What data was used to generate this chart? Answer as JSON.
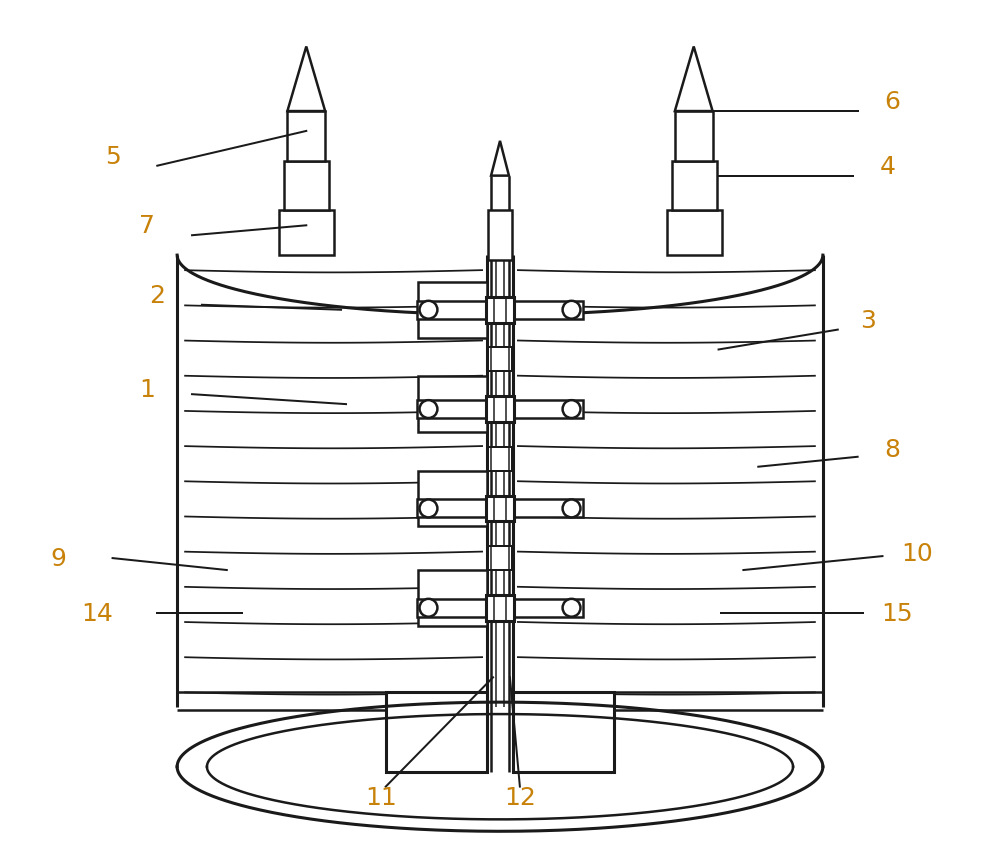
{
  "bg_color": "#ffffff",
  "line_color": "#1a1a1a",
  "label_color": "#c8820a",
  "label_fontsize": 18,
  "line_width": 1.8,
  "thick_lw": 2.2,
  "fig_width": 10.0,
  "fig_height": 8.45
}
